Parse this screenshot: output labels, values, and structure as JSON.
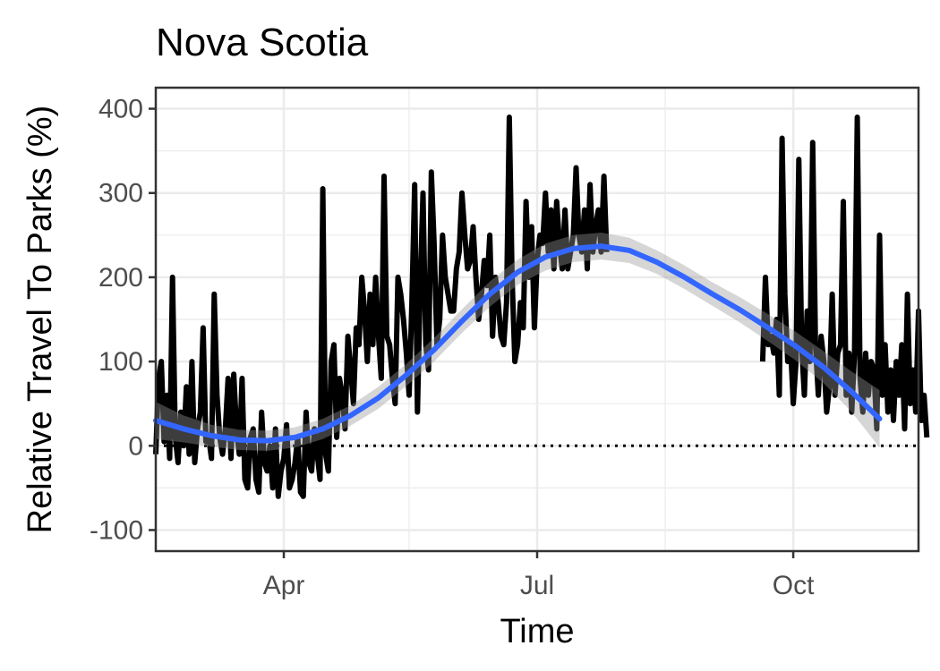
{
  "chart_data": {
    "type": "line",
    "title": "Nova Scotia",
    "xlabel": "Time",
    "ylabel": "Relative Travel To Parks (%)",
    "x_range": [
      "2020-02-15",
      "2020-11-15"
    ],
    "ylim": [
      -125,
      425
    ],
    "x_ticks": [
      {
        "date": "2020-04-01",
        "label": "Apr"
      },
      {
        "date": "2020-07-01",
        "label": "Jul"
      },
      {
        "date": "2020-10-01",
        "label": "Oct"
      }
    ],
    "x_minor_ticks": [
      "2020-02-15",
      "2020-05-16",
      "2020-08-16",
      "2020-11-15"
    ],
    "y_ticks": [
      -100,
      0,
      100,
      200,
      300,
      400
    ],
    "y_minor_ticks": [
      -50,
      50,
      150,
      250,
      350
    ],
    "grid": true,
    "reference_line": {
      "y": 0,
      "style": "dotted",
      "color": "#000000"
    },
    "colors": {
      "series": "#000000",
      "smooth": "#3366FF",
      "band": "#999999",
      "panel_border": "#333333",
      "grid": "#EBEBEB"
    },
    "series": [
      {
        "style": "line",
        "segments": [
          {
            "start": "2020-02-15",
            "values": [
              -10,
              80,
              100,
              5,
              60,
              -15,
              200,
              10,
              -20,
              40,
              0,
              70,
              -10,
              100,
              -20,
              20,
              40,
              140,
              5,
              10,
              -15,
              180,
              60,
              10,
              -10,
              20,
              80,
              -15,
              85,
              20,
              -10,
              80,
              -40,
              -50,
              10,
              20,
              -40,
              -55,
              40,
              -20,
              -30,
              0,
              -50,
              20,
              -60,
              -30,
              -15,
              25,
              -50,
              -40,
              -20,
              10,
              -55,
              -60,
              40,
              -20,
              -30,
              20,
              -10,
              -40,
              305,
              -10,
              -30,
              100,
              120,
              10,
              80,
              60,
              20,
              130,
              90,
              50,
              140,
              120,
              200,
              160,
              100,
              180,
              120,
              200,
              130,
              80,
              320,
              130,
              120,
              80,
              50,
              200,
              180,
              150,
              110,
              60,
              170,
              310,
              40,
              190,
              300,
              120,
              90,
              325,
              240,
              120,
              150,
              250,
              200,
              180,
              160,
              160,
              210,
              230,
              300,
              250,
              210,
              220,
              260,
              200,
              150,
              180,
              220,
              190,
              250,
              130,
              200,
              170,
              130,
              120,
              170,
              390,
              200,
              100,
              120,
              170,
              140,
              290,
              200,
              260,
              140,
              220,
              250,
              240,
              300,
              230,
              280,
              210,
              290,
              240,
              210,
              280,
              210,
              230,
              250,
              330,
              250,
              230,
              280,
              210,
              310,
              230,
              260,
              280,
              230,
              320,
              230
            ]
          },
          {
            "start": "2020-09-20",
            "values": [
              100,
              200,
              120,
              130,
              110,
              150,
              60,
              365,
              180,
              100,
              120,
              50,
              100,
              340,
              120,
              60,
              160,
              100,
              360,
              120,
              60,
              130,
              100,
              40,
              70,
              180,
              60,
              110,
              120,
              290,
              60,
              110,
              40,
              110,
              390,
              80,
              40,
              110,
              60,
              100,
              90,
              20,
              250,
              60,
              120,
              40,
              90,
              30,
              100,
              60,
              120,
              20,
              180,
              50,
              90,
              40,
              160,
              30,
              60,
              10
            ]
          }
        ]
      },
      {
        "style": "smooth",
        "start": "2020-02-15",
        "step_days": 10,
        "values": [
          30,
          20,
          12,
          7,
          6,
          10,
          20,
          36,
          57,
          84,
          114,
          148,
          180,
          206,
          224,
          234,
          237,
          232,
          218,
          200,
          180,
          161,
          140,
          118,
          93,
          64,
          32
        ],
        "band_halfwidth": [
          22,
          16,
          13,
          12,
          12,
          12,
          12,
          12,
          13,
          13,
          14,
          14,
          15,
          15,
          16,
          16,
          16,
          15,
          14,
          14,
          14,
          15,
          16,
          17,
          19,
          24,
          34
        ]
      }
    ]
  }
}
